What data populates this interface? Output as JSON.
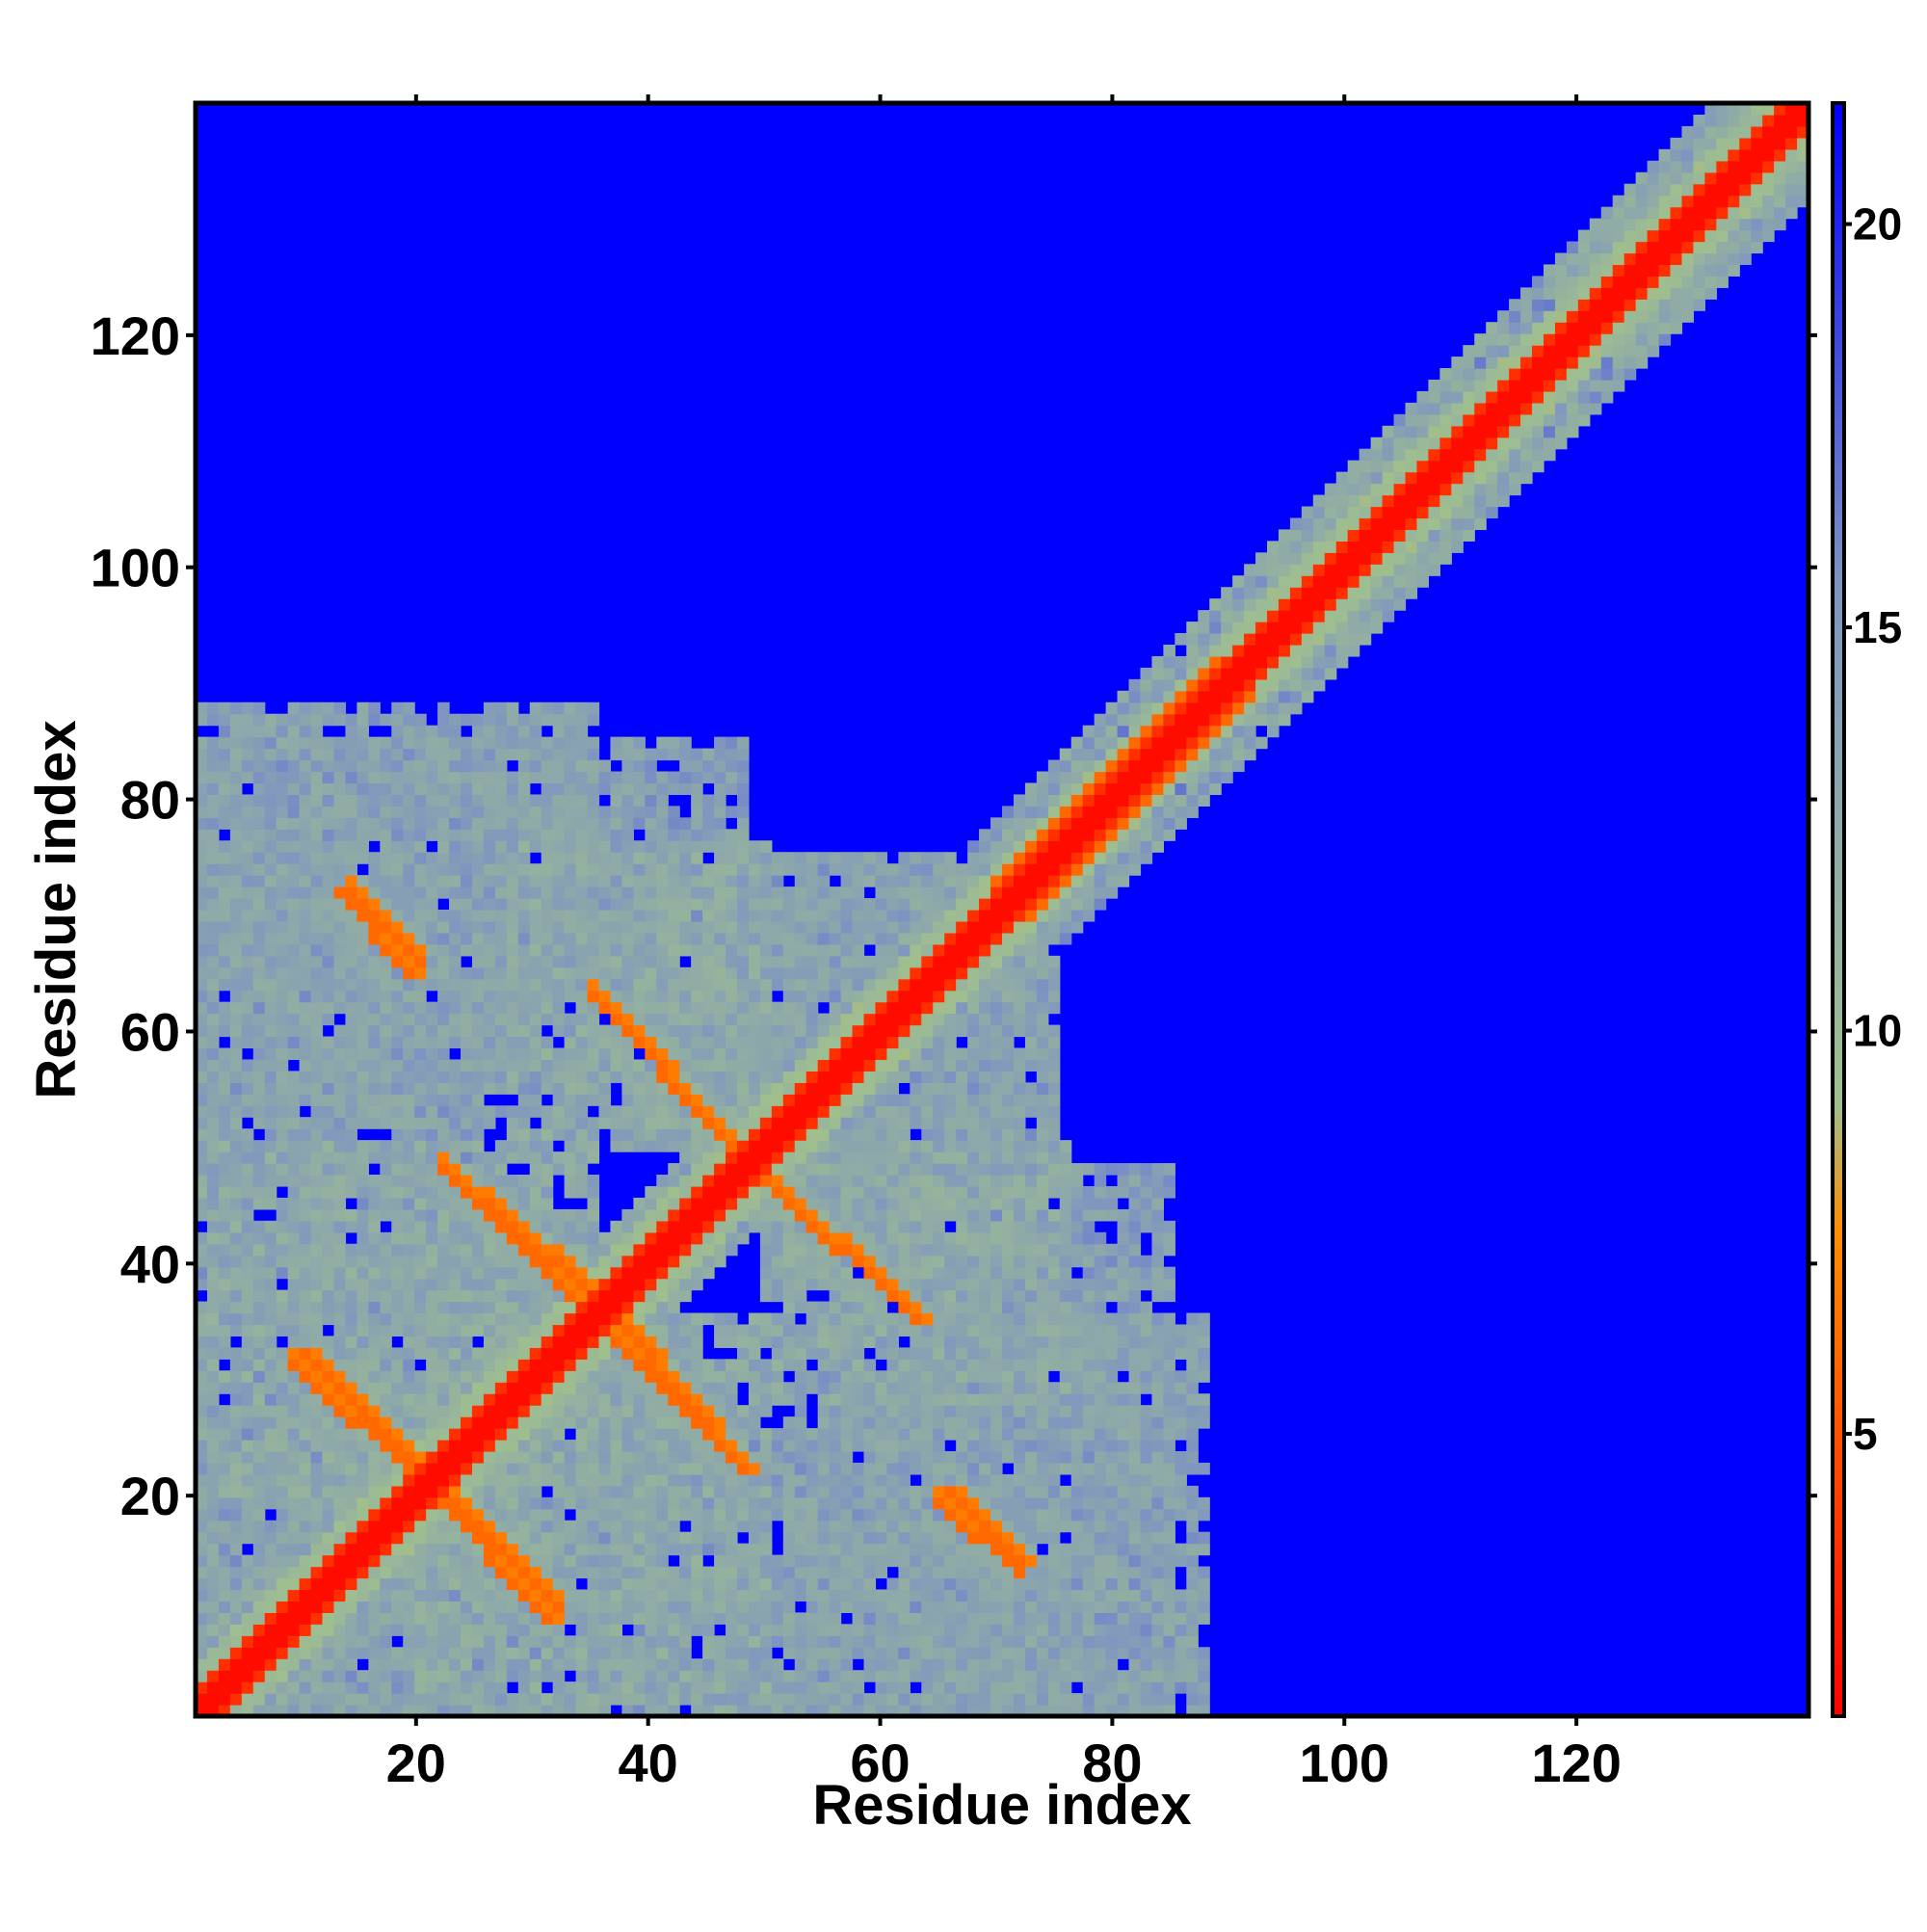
{
  "chart_data": {
    "type": "heatmap",
    "title": "",
    "xlabel": "Residue index",
    "ylabel": "Residue index",
    "xlim": [
      1,
      140
    ],
    "ylim": [
      1,
      140
    ],
    "x_ticks": [
      20,
      40,
      60,
      80,
      100,
      120
    ],
    "y_ticks": [
      20,
      40,
      60,
      80,
      100,
      120
    ],
    "grid": false,
    "legend": "none",
    "colorbar": {
      "placement": "right",
      "range": [
        1.5,
        21.5
      ],
      "ticks": [
        5,
        10,
        15,
        20
      ],
      "colors": [
        "#ff0000",
        "#ff8c00",
        "#9fbf8f",
        "#7f95c0",
        "#0000ff"
      ],
      "stops": [
        0,
        0.3,
        0.38,
        0.7,
        1
      ]
    },
    "background_value": 21,
    "contact_map": {
      "description": "symmetric residue-residue distance map; values are distances at each (i, j)",
      "main_diagonal": {
        "from": 1,
        "to": 140,
        "core_value": 2,
        "near_value": 6
      },
      "antiparallel_bands": [
        {
          "x": [
            13,
            19
          ],
          "y": [
            72,
            65
          ],
          "value": 6
        },
        {
          "x": [
            10,
            20
          ],
          "y": [
            32,
            22
          ],
          "value": 6
        },
        {
          "x": [
            35,
            47
          ],
          "y": [
            63,
            50
          ],
          "value": 6
        },
        {
          "x": [
            22,
            33
          ],
          "y": [
            48,
            37
          ],
          "value": 6
        },
        {
          "x": [
            37,
            48
          ],
          "y": [
            35,
            22
          ],
          "value": 6
        },
        {
          "x": [
            21,
            31
          ],
          "y": [
            20,
            9
          ],
          "value": 6
        },
        {
          "x": [
            50,
            63
          ],
          "y": [
            47,
            35
          ],
          "value": 6
        },
        {
          "x": [
            66,
            72
          ],
          "y": [
            20,
            14
          ],
          "value": 6
        }
      ],
      "regions": [
        {
          "x": [
            1,
            35
          ],
          "y": [
            52,
            88
          ],
          "value": 13
        },
        {
          "x": [
            28,
            50
          ],
          "y": [
            50,
            76
          ],
          "value": 12
        },
        {
          "x": [
            1,
            35
          ],
          "y": [
            20,
            50
          ],
          "value": 12
        },
        {
          "x": [
            1,
            32
          ],
          "y": [
            1,
            20
          ],
          "value": 13
        },
        {
          "x": [
            30,
            60
          ],
          "y": [
            1,
            24
          ],
          "value": 13
        },
        {
          "x": [
            50,
            85
          ],
          "y": [
            1,
            25
          ],
          "value": 13
        },
        {
          "x": [
            55,
            85
          ],
          "y": [
            22,
            48
          ],
          "value": 13
        },
        {
          "x": [
            50,
            75
          ],
          "y": [
            48,
            72
          ],
          "value": 13
        }
      ]
    }
  }
}
